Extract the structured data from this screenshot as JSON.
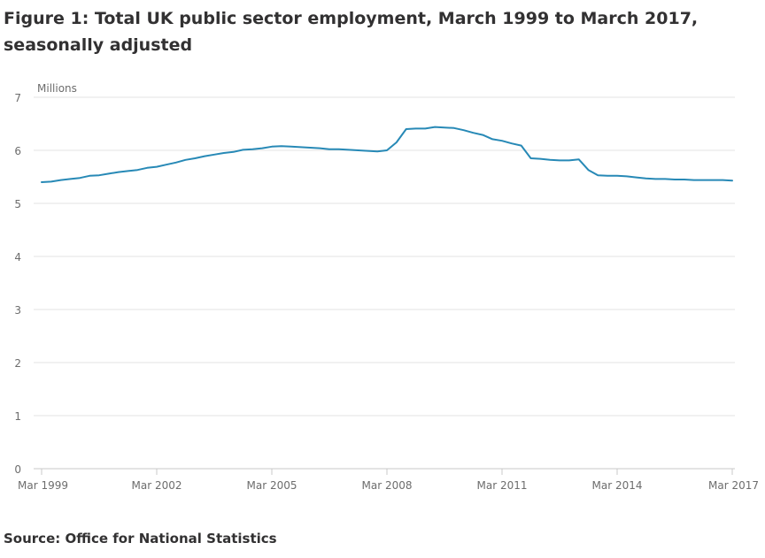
{
  "figure": {
    "title": "Figure 1: Total UK public sector employment, March 1999 to March 2017, seasonally adjusted",
    "source": "Source: Office for National Statistics"
  },
  "colors": {
    "line": "#2789b6",
    "grid": "#e3e3e3",
    "axis": "#c8c8c8",
    "text": "#6d6d6d",
    "title": "#323132"
  },
  "chart_data": {
    "type": "line",
    "title": "Figure 1: Total UK public sector employment, March 1999 to March 2017, seasonally adjusted",
    "xlabel": "",
    "ylabel": "Millions",
    "ylim": [
      0,
      7
    ],
    "yticks": [
      0,
      1,
      2,
      3,
      4,
      5,
      6,
      7
    ],
    "xlim": [
      1999.0,
      2017.0
    ],
    "xticks": [
      {
        "value": 1999.0,
        "label": "Mar 1999"
      },
      {
        "value": 2002.0,
        "label": "Mar 2002"
      },
      {
        "value": 2005.0,
        "label": "Mar 2005"
      },
      {
        "value": 2008.0,
        "label": "Mar 2008"
      },
      {
        "value": 2011.0,
        "label": "Mar 2011"
      },
      {
        "value": 2014.0,
        "label": "Mar 2014"
      },
      {
        "value": 2017.0,
        "label": "Mar 2017"
      }
    ],
    "grid": true,
    "series": [
      {
        "x": [
          1999.0,
          1999.25,
          1999.5,
          1999.75,
          2000.0,
          2000.25,
          2000.5,
          2000.75,
          2001.0,
          2001.25,
          2001.5,
          2001.75,
          2002.0,
          2002.25,
          2002.5,
          2002.75,
          2003.0,
          2003.25,
          2003.5,
          2003.75,
          2004.0,
          2004.25,
          2004.5,
          2004.75,
          2005.0,
          2005.25,
          2005.5,
          2005.75,
          2006.0,
          2006.25,
          2006.5,
          2006.75,
          2007.0,
          2007.25,
          2007.5,
          2007.75,
          2008.0,
          2008.25,
          2008.5,
          2008.75,
          2009.0,
          2009.25,
          2009.5,
          2009.75,
          2010.0,
          2010.25,
          2010.5,
          2010.75,
          2011.0,
          2011.25,
          2011.5,
          2011.75,
          2012.0,
          2012.25,
          2012.5,
          2012.75,
          2013.0,
          2013.25,
          2013.5,
          2013.75,
          2014.0,
          2014.25,
          2014.5,
          2014.75,
          2015.0,
          2015.25,
          2015.5,
          2015.75,
          2016.0,
          2016.25,
          2016.5,
          2016.75,
          2017.0
        ],
        "values": [
          5.4,
          5.41,
          5.44,
          5.46,
          5.48,
          5.52,
          5.53,
          5.56,
          5.59,
          5.61,
          5.63,
          5.67,
          5.69,
          5.73,
          5.77,
          5.82,
          5.85,
          5.89,
          5.92,
          5.95,
          5.97,
          6.01,
          6.02,
          6.04,
          6.07,
          6.08,
          6.07,
          6.06,
          6.05,
          6.04,
          6.02,
          6.02,
          6.01,
          6.0,
          5.99,
          5.98,
          6.0,
          6.15,
          6.4,
          6.41,
          6.41,
          6.44,
          6.43,
          6.42,
          6.38,
          6.33,
          6.29,
          6.21,
          6.18,
          6.13,
          6.09,
          5.85,
          5.84,
          5.82,
          5.81,
          5.81,
          5.83,
          5.63,
          5.53,
          5.52,
          5.52,
          5.51,
          5.49,
          5.47,
          5.46,
          5.46,
          5.45,
          5.45,
          5.44,
          5.44,
          5.44,
          5.44,
          5.43
        ]
      }
    ]
  }
}
